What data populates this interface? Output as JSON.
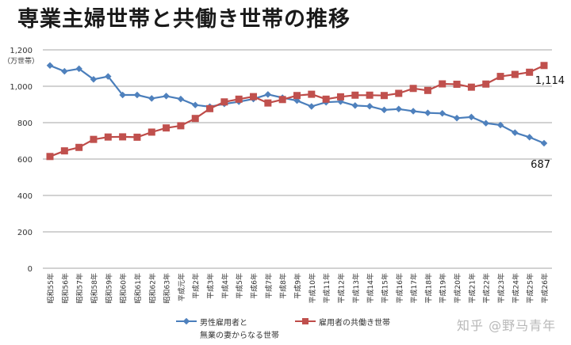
{
  "title": "専業主婦世帯と共働き世帯の推移",
  "watermark": "知乎 @野马青年",
  "colors": {
    "series1": "#4F81BD",
    "series1_line": "#4A7EBB",
    "series2": "#C0504D",
    "series2_line": "#BE4B48",
    "grid": "#A6A6A6"
  },
  "legend": {
    "series1_line1": "男性雇用者と",
    "series1_line2": "無業の妻からなる世帯",
    "series2": "雇用者の共働き世帯"
  },
  "end_labels": {
    "series2": "1,114",
    "series1": "687"
  },
  "chart_data": {
    "type": "line",
    "title": "専業主婦世帯と共働き世帯の推移",
    "xlabel": "",
    "ylabel": "（万世帯）",
    "ylim": [
      0,
      1200
    ],
    "yticks": [
      0,
      200,
      400,
      600,
      800,
      1000,
      1200
    ],
    "ytick_labels": [
      "0",
      "200",
      "400",
      "600",
      "800",
      "1,000",
      "1,200"
    ],
    "grid": true,
    "legend_position": "bottom",
    "categories": [
      "昭和55年",
      "昭和56年",
      "昭和57年",
      "昭和58年",
      "昭和59年",
      "昭和60年",
      "昭和61年",
      "昭和62年",
      "昭和63年",
      "平成元年",
      "平成2年",
      "平成3年",
      "平成4年",
      "平成5年",
      "平成6年",
      "平成7年",
      "平成8年",
      "平成9年",
      "平成10年",
      "平成11年",
      "平成12年",
      "平成13年",
      "平成14年",
      "平成15年",
      "平成16年",
      "平成17年",
      "平成18年",
      "平成19年",
      "平成20年",
      "平成21年",
      "平成22年",
      "平成23年",
      "平成24年",
      "平成25年",
      "平成26年"
    ],
    "series": [
      {
        "name": "男性雇用者と無業の妻からなる世帯",
        "marker": "diamond",
        "values": [
          1114,
          1082,
          1096,
          1038,
          1054,
          952,
          952,
          933,
          946,
          930,
          897,
          888,
          903,
          915,
          930,
          955,
          937,
          921,
          889,
          912,
          916,
          894,
          890,
          870,
          875,
          863,
          854,
          851,
          825,
          831,
          797,
          787,
          745,
          720,
          687
        ]
      },
      {
        "name": "雇用者の共働き世帯",
        "marker": "square",
        "values": [
          614,
          645,
          664,
          708,
          721,
          722,
          720,
          748,
          771,
          783,
          823,
          877,
          914,
          929,
          943,
          908,
          927,
          949,
          956,
          929,
          942,
          951,
          951,
          949,
          961,
          988,
          977,
          1013,
          1011,
          995,
          1012,
          1054,
          1065,
          1077,
          1114
        ]
      }
    ],
    "annotations": [
      {
        "text": "1,114",
        "series": 1,
        "index": 34
      },
      {
        "text": "687",
        "series": 0,
        "index": 34
      }
    ]
  }
}
